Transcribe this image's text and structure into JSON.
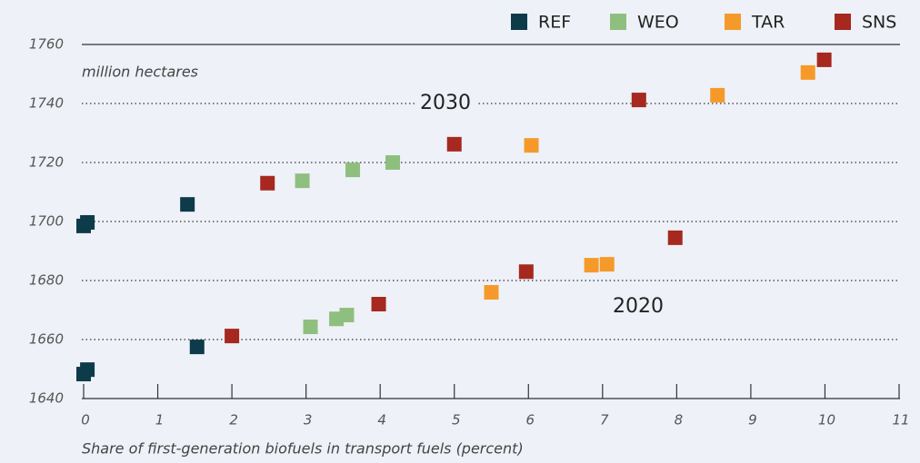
{
  "chart_data": {
    "type": "scatter",
    "y_label": "million hectares",
    "x_label": "Share of first-generation biofuels in transport fuels (percent)",
    "annotations": [
      "2030",
      "2020"
    ],
    "xlim": [
      0,
      11
    ],
    "xticks": [
      0,
      1,
      2,
      3,
      4,
      5,
      6,
      7,
      8,
      9,
      10,
      11
    ],
    "ylim": [
      1640,
      1760
    ],
    "yticks": [
      1640,
      1660,
      1680,
      1700,
      1720,
      1740,
      1760
    ],
    "grid": true,
    "legend": "top right",
    "series": [
      {
        "name": "REF",
        "color": "#0d3b4a",
        "x": [
          0,
          0.05,
          1.4,
          0,
          0.05,
          1.53
        ],
        "values": [
          1698.5,
          1699.7,
          1705.8,
          1648.3,
          1649.8,
          1657.5
        ]
      },
      {
        "name": "WEO",
        "color": "#8fbf7f",
        "x": [
          2.95,
          3.63,
          4.17,
          3.06,
          3.41,
          3.55
        ],
        "values": [
          1713.8,
          1717.5,
          1720,
          1664.3,
          1667,
          1668.3
        ]
      },
      {
        "name": "TAR",
        "color": "#f59a2a",
        "x": [
          6.04,
          8.55,
          9.77,
          5.5,
          6.85,
          7.06
        ],
        "values": [
          1725.8,
          1742.8,
          1750.5,
          1676,
          1685.2,
          1685.5
        ]
      },
      {
        "name": "SNS",
        "color": "#a6281e",
        "x": [
          2.48,
          5.0,
          7.49,
          9.99,
          2.0,
          3.98,
          5.97,
          7.98
        ],
        "values": [
          1713,
          1726.2,
          1741.2,
          1754.8,
          1661.2,
          1672,
          1683,
          1694.5
        ]
      }
    ]
  }
}
